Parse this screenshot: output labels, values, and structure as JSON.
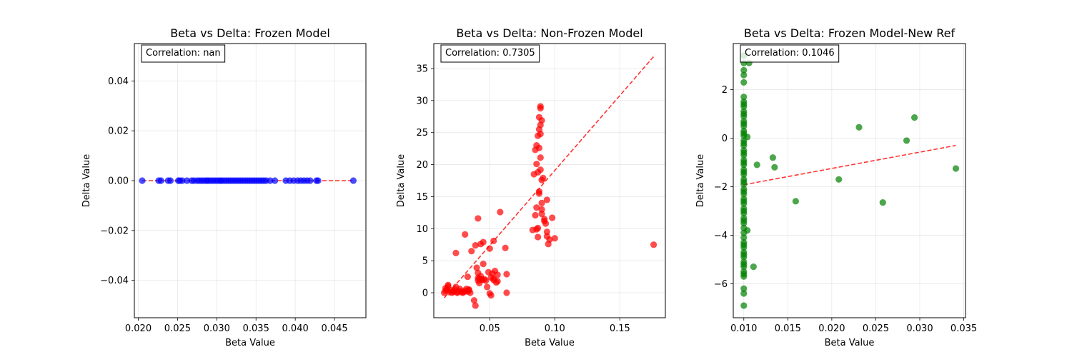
{
  "chart_data": [
    {
      "type": "scatter",
      "title": "Beta vs Delta: Frozen Model",
      "xlabel": "Beta Value",
      "ylabel": "Delta Value",
      "xlim": [
        0.0195,
        0.049
      ],
      "ylim": [
        -0.055,
        0.055
      ],
      "xticks": [
        0.02,
        0.025,
        0.03,
        0.035,
        0.04,
        0.045
      ],
      "xtick_labels": [
        "0.020",
        "0.025",
        "0.030",
        "0.035",
        "0.040",
        "0.045"
      ],
      "yticks": [
        -0.04,
        -0.02,
        0.0,
        0.02,
        0.04
      ],
      "ytick_labels": [
        "−0.04",
        "−0.02",
        "0.00",
        "0.02",
        "0.04"
      ],
      "grid": true,
      "point_color": "#0000ff",
      "annotation": "Correlation: nan",
      "series": [
        {
          "x": [
            0.0205,
            0.0226,
            0.0229,
            0.0238,
            0.0241,
            0.0251,
            0.0253,
            0.0256,
            0.0262,
            0.0268,
            0.0271,
            0.0275,
            0.0278,
            0.0281,
            0.0284,
            0.0287,
            0.0289,
            0.0292,
            0.0295,
            0.0298,
            0.0301,
            0.0304,
            0.0306,
            0.0309,
            0.0312,
            0.0315,
            0.0318,
            0.0321,
            0.0324,
            0.0327,
            0.033,
            0.0333,
            0.0336,
            0.0339,
            0.0342,
            0.0345,
            0.0348,
            0.0351,
            0.0354,
            0.0357,
            0.036,
            0.0363,
            0.0368,
            0.0374,
            0.0388,
            0.0393,
            0.0398,
            0.0403,
            0.0407,
            0.0411,
            0.0415,
            0.0419,
            0.0427,
            0.0429,
            0.0474
          ],
          "y": [
            0,
            0,
            0,
            0,
            0,
            0,
            0,
            0,
            0,
            0,
            0,
            0,
            0,
            0,
            0,
            0,
            0,
            0,
            0,
            0,
            0,
            0,
            0,
            0,
            0,
            0,
            0,
            0,
            0,
            0,
            0,
            0,
            0,
            0,
            0,
            0,
            0,
            0,
            0,
            0,
            0,
            0,
            0,
            0,
            0,
            0,
            0,
            0,
            0,
            0,
            0,
            0,
            0,
            0,
            0
          ]
        }
      ],
      "trend": {
        "x": [
          0.0205,
          0.0474
        ],
        "y": [
          0,
          0
        ]
      }
    },
    {
      "type": "scatter",
      "title": "Beta vs Delta: Non-Frozen Model",
      "xlabel": "Beta Value",
      "ylabel": "Delta Value",
      "xlim": [
        0.007,
        0.185
      ],
      "ylim": [
        -3.9,
        38.9
      ],
      "xticks": [
        0.05,
        0.1,
        0.15
      ],
      "xtick_labels": [
        "0.05",
        "0.10",
        "0.15"
      ],
      "yticks": [
        0,
        5,
        10,
        15,
        20,
        25,
        30,
        35
      ],
      "ytick_labels": [
        "0",
        "5",
        "10",
        "15",
        "20",
        "25",
        "30",
        "35"
      ],
      "grid": true,
      "point_color": "#ff0000",
      "annotation": "Correlation: 0.7305",
      "series": [
        {
          "x": [
            0.015,
            0.016,
            0.017,
            0.018,
            0.019,
            0.02,
            0.021,
            0.022,
            0.023,
            0.024,
            0.025,
            0.026,
            0.027,
            0.028,
            0.029,
            0.03,
            0.031,
            0.032,
            0.033,
            0.034,
            0.035,
            0.016,
            0.018,
            0.022,
            0.025,
            0.031,
            0.033,
            0.034,
            0.036,
            0.038,
            0.039,
            0.04,
            0.041,
            0.041,
            0.042,
            0.042,
            0.043,
            0.044,
            0.045,
            0.045,
            0.046,
            0.047,
            0.048,
            0.049,
            0.05,
            0.05,
            0.051,
            0.052,
            0.053,
            0.053,
            0.054,
            0.055,
            0.056,
            0.058,
            0.062,
            0.063,
            0.024,
            0.041,
            0.044,
            0.043,
            0.051,
            0.053,
            0.063,
            0.056,
            0.039,
            0.041,
            0.083,
            0.084,
            0.085,
            0.085,
            0.086,
            0.086,
            0.086,
            0.087,
            0.087,
            0.087,
            0.088,
            0.088,
            0.088,
            0.088,
            0.089,
            0.089,
            0.089,
            0.089,
            0.089,
            0.089,
            0.09,
            0.09,
            0.09,
            0.09,
            0.091,
            0.092,
            0.093,
            0.094,
            0.094,
            0.095,
            0.096,
            0.098,
            0.1,
            0.086,
            0.087,
            0.088,
            0.09,
            0.092,
            0.094,
            0.176
          ],
          "y": [
            0.0,
            0.3,
            0.5,
            1.2,
            0.1,
            0.4,
            0.0,
            0.2,
            0.5,
            0.9,
            0.1,
            0.3,
            0.6,
            0.2,
            0.0,
            0.1,
            0.3,
            0.6,
            0.2,
            0.4,
            0.0,
            0.7,
            1.0,
            0.2,
            0.0,
            9.1,
            2.5,
            0.5,
            6.5,
            -1.2,
            7.4,
            3.9,
            3.1,
            1.9,
            2.2,
            1.5,
            7.6,
            2.0,
            4.5,
            7.9,
            2.1,
            1.9,
            0.9,
            3.2,
            -0.1,
            6.9,
            2.4,
            3.0,
            2.0,
            8.1,
            3.4,
            1.6,
            2.8,
            12.6,
            7.0,
            2.9,
            6.2,
            11.6,
            2.1,
            2.6,
            -0.4,
            2.2,
            0.0,
            1.8,
            -2.0,
            2.3,
            9.8,
            18.5,
            22.3,
            12.1,
            23.0,
            20.1,
            13.3,
            24.5,
            18.8,
            10.1,
            25.5,
            27.4,
            22.6,
            15.8,
            28.8,
            26.2,
            24.8,
            21.1,
            19.2,
            29.1,
            17.6,
            26.9,
            14.0,
            12.3,
            17.9,
            11.5,
            10.8,
            9.5,
            14.5,
            7.6,
            8.3,
            11.7,
            8.5,
            9.9,
            8.7,
            15.5,
            13.0,
            11.2,
            8.8,
            7.5
          ],
          "symbols": "."
        }
      ],
      "trend": {
        "x": [
          0.015,
          0.177
        ],
        "y": [
          -0.8,
          37.1
        ]
      }
    },
    {
      "type": "scatter",
      "title": "Beta vs Delta: Frozen Model-New Ref",
      "xlabel": "Beta Value",
      "ylabel": "Delta Value",
      "xlim": [
        0.0088,
        0.0352
      ],
      "ylim": [
        -7.4,
        3.9
      ],
      "xticks": [
        0.01,
        0.015,
        0.02,
        0.025,
        0.03,
        0.035
      ],
      "xtick_labels": [
        "0.010",
        "0.015",
        "0.020",
        "0.025",
        "0.030",
        "0.035"
      ],
      "yticks": [
        -6,
        -4,
        -2,
        0,
        2
      ],
      "ytick_labels": [
        "−6",
        "−4",
        "−2",
        "0",
        "2"
      ],
      "grid": true,
      "point_color": "#008000",
      "annotation": "Correlation: 0.1046",
      "series": [
        {
          "x": [
            0.01,
            0.01,
            0.01,
            0.01,
            0.01,
            0.01,
            0.01,
            0.01,
            0.01,
            0.01,
            0.01,
            0.01,
            0.01,
            0.01,
            0.01,
            0.01,
            0.01,
            0.01,
            0.01,
            0.01,
            0.01,
            0.01,
            0.01,
            0.01,
            0.01,
            0.01,
            0.01,
            0.01,
            0.01,
            0.01,
            0.01,
            0.01,
            0.01,
            0.01,
            0.01,
            0.01,
            0.01,
            0.01,
            0.01,
            0.01,
            0.01,
            0.01,
            0.01,
            0.01,
            0.01,
            0.01,
            0.01,
            0.01,
            0.01,
            0.01,
            0.01,
            0.01,
            0.01,
            0.01,
            0.01,
            0.01,
            0.01,
            0.01,
            0.01,
            0.01,
            0.01,
            0.01,
            0.01,
            0.0104,
            0.0104,
            0.0106,
            0.0111,
            0.0115,
            0.0133,
            0.0135,
            0.0159,
            0.0208,
            0.0231,
            0.0258,
            0.0285,
            0.0294,
            0.0341
          ],
          "y": [
            3.4,
            3.1,
            2.8,
            2.6,
            2.3,
            1.7,
            1.5,
            1.3,
            1.1,
            0.9,
            0.7,
            0.5,
            0.3,
            0.1,
            -0.1,
            -0.3,
            -0.5,
            -0.7,
            -0.9,
            -1.1,
            -1.3,
            -1.5,
            -1.7,
            -1.9,
            -2.1,
            -2.3,
            -2.5,
            -2.7,
            -2.9,
            -3.1,
            -3.3,
            -3.5,
            -3.7,
            -3.9,
            -4.1,
            -4.3,
            -4.5,
            -4.7,
            -4.9,
            -5.1,
            -5.3,
            -5.5,
            -5.7,
            -6.2,
            -6.4,
            -6.9,
            0.2,
            -0.2,
            -0.6,
            -1.0,
            -1.4,
            -1.8,
            -2.2,
            -2.6,
            -3.0,
            -3.4,
            -4.4,
            -4.8,
            -5.2,
            -5.6,
            0.6,
            1.0,
            1.4,
            0.05,
            -3.8,
            3.1,
            -5.3,
            -1.1,
            -0.8,
            -1.2,
            -2.6,
            -1.7,
            0.45,
            -2.65,
            -0.1,
            0.85,
            -1.25
          ]
        }
      ],
      "trend": {
        "x": [
          0.01,
          0.0341
        ],
        "y": [
          -1.92,
          -0.3
        ]
      }
    }
  ]
}
